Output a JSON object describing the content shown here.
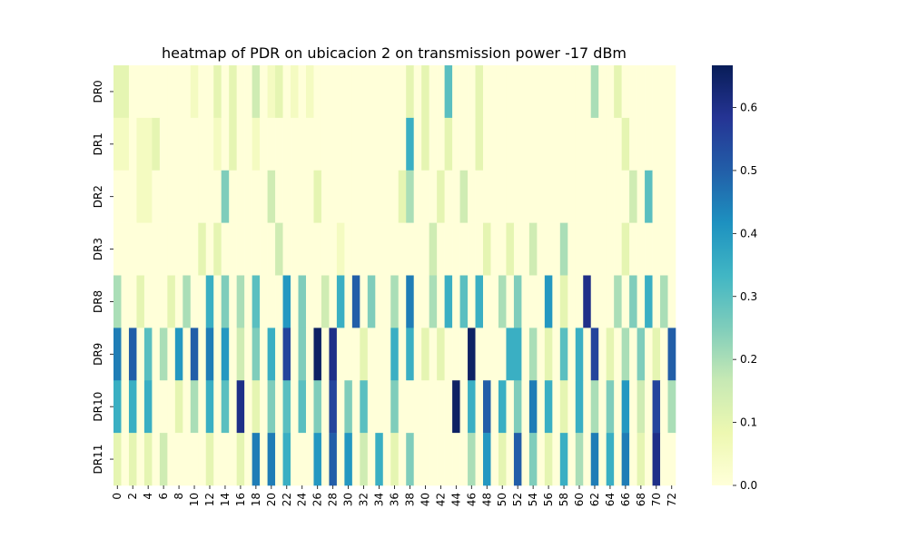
{
  "chart_data": {
    "type": "heatmap",
    "title": "heatmap of PDR on ubicacion 2 on transmission power -17 dBm",
    "xlabel": "",
    "ylabel": "",
    "x_tick_labels": [
      "0",
      "2",
      "4",
      "6",
      "8",
      "10",
      "12",
      "14",
      "16",
      "18",
      "20",
      "22",
      "24",
      "26",
      "28",
      "30",
      "32",
      "34",
      "36",
      "38",
      "40",
      "42",
      "44",
      "46",
      "48",
      "50",
      "52",
      "54",
      "56",
      "58",
      "60",
      "62",
      "64",
      "66",
      "68",
      "70",
      "72"
    ],
    "rows": [
      "DR0",
      "DR1",
      "DR2",
      "DR3",
      "DR8",
      "DR9",
      "DR10",
      "DR11"
    ],
    "columns": 73,
    "colormap": "YlGnBu",
    "vmin": 0,
    "vmax": 0.667,
    "colorbar_ticks": [
      "0.0",
      "0.1",
      "0.2",
      "0.3",
      "0.4",
      "0.5",
      "0.6"
    ],
    "colorbar_tick_values": [
      0.0,
      0.1,
      0.2,
      0.3,
      0.4,
      0.5,
      0.6
    ],
    "values": [
      [
        0.1,
        0.1,
        0,
        0,
        0,
        0,
        0,
        0,
        0,
        0,
        0.05,
        0,
        0,
        0.1,
        0,
        0.1,
        0,
        0,
        0.15,
        0,
        0.05,
        0.1,
        0,
        0.05,
        0,
        0.05,
        0,
        0,
        0,
        0,
        0,
        0,
        0,
        0,
        0,
        0,
        0,
        0,
        0.1,
        0,
        0.1,
        0,
        0,
        0.3,
        0,
        0,
        0,
        0.1,
        0,
        0,
        0,
        0,
        0,
        0,
        0,
        0,
        0,
        0,
        0,
        0,
        0,
        0,
        0.2,
        0,
        0,
        0.1,
        0,
        0,
        0,
        0,
        0,
        0,
        0
      ],
      [
        0.05,
        0.05,
        0,
        0.05,
        0.05,
        0.1,
        0,
        0,
        0,
        0,
        0,
        0,
        0,
        0.05,
        0,
        0.1,
        0,
        0,
        0.05,
        0,
        0,
        0,
        0,
        0,
        0,
        0,
        0,
        0,
        0,
        0,
        0,
        0,
        0,
        0,
        0,
        0,
        0,
        0,
        0.35,
        0,
        0.1,
        0,
        0,
        0.1,
        0,
        0,
        0,
        0.1,
        0,
        0,
        0,
        0,
        0,
        0,
        0,
        0,
        0,
        0,
        0,
        0,
        0,
        0,
        0,
        0,
        0,
        0,
        0.1,
        0,
        0,
        0,
        0,
        0,
        0
      ],
      [
        0,
        0,
        0,
        0.05,
        0.05,
        0,
        0,
        0,
        0,
        0,
        0,
        0,
        0,
        0,
        0.25,
        0,
        0,
        0,
        0,
        0,
        0.15,
        0,
        0,
        0,
        0,
        0,
        0.1,
        0,
        0,
        0,
        0,
        0,
        0,
        0,
        0,
        0,
        0,
        0.1,
        0.2,
        0,
        0,
        0,
        0.1,
        0,
        0,
        0.15,
        0,
        0,
        0,
        0,
        0,
        0,
        0,
        0,
        0,
        0,
        0,
        0,
        0,
        0,
        0,
        0,
        0,
        0,
        0,
        0,
        0,
        0.15,
        0,
        0.3,
        0,
        0,
        0
      ],
      [
        0,
        0,
        0,
        0,
        0,
        0,
        0,
        0,
        0,
        0,
        0,
        0.1,
        0,
        0.1,
        0,
        0,
        0,
        0,
        0,
        0,
        0,
        0.15,
        0,
        0,
        0,
        0,
        0,
        0,
        0,
        0.05,
        0,
        0,
        0,
        0,
        0,
        0,
        0,
        0,
        0,
        0,
        0,
        0.15,
        0,
        0,
        0,
        0,
        0,
        0,
        0.1,
        0,
        0,
        0.1,
        0,
        0,
        0.15,
        0,
        0,
        0,
        0.2,
        0,
        0,
        0,
        0,
        0,
        0,
        0,
        0.1,
        0,
        0,
        0,
        0,
        0,
        0
      ],
      [
        0.2,
        0,
        0,
        0.1,
        0,
        0,
        0,
        0.1,
        0,
        0.2,
        0,
        0,
        0.35,
        0,
        0.25,
        0,
        0.2,
        0,
        0.3,
        0,
        0,
        0,
        0.4,
        0,
        0.25,
        0,
        0,
        0.15,
        0,
        0.35,
        0,
        0.5,
        0,
        0.25,
        0,
        0,
        0.2,
        0,
        0.45,
        0,
        0,
        0.2,
        0,
        0.35,
        0,
        0.3,
        0,
        0.35,
        0,
        0,
        0.2,
        0,
        0.25,
        0,
        0,
        0,
        0.4,
        0,
        0.1,
        0,
        0,
        0.6,
        0,
        0,
        0,
        0.2,
        0,
        0.25,
        0,
        0.35,
        0,
        0.2,
        0
      ],
      [
        0.45,
        0,
        0.5,
        0,
        0.3,
        0,
        0.2,
        0,
        0.4,
        0,
        0.5,
        0,
        0.45,
        0,
        0.4,
        0,
        0.15,
        0,
        0.25,
        0,
        0.35,
        0,
        0.55,
        0,
        0.25,
        0,
        0.65,
        0,
        0.6,
        0,
        0,
        0,
        0.1,
        0,
        0,
        0,
        0.35,
        0,
        0.35,
        0,
        0.1,
        0,
        0.1,
        0,
        0,
        0,
        0.65,
        0,
        0,
        0,
        0,
        0.35,
        0.35,
        0,
        0.2,
        0,
        0.1,
        0,
        0.3,
        0,
        0.35,
        0,
        0.55,
        0,
        0.1,
        0,
        0.2,
        0,
        0.25,
        0,
        0.1,
        0,
        0.5
      ],
      [
        0.35,
        0,
        0.35,
        0,
        0.35,
        0,
        0,
        0,
        0.1,
        0,
        0.2,
        0,
        0.35,
        0,
        0.3,
        0,
        0.6,
        0,
        0.1,
        0,
        0.25,
        0,
        0.3,
        0,
        0.3,
        0,
        0.25,
        0,
        0.55,
        0,
        0.25,
        0,
        0.3,
        0,
        0,
        0,
        0.25,
        0,
        0,
        0,
        0,
        0,
        0,
        0,
        0.65,
        0,
        0.35,
        0,
        0.5,
        0,
        0.35,
        0,
        0.25,
        0,
        0.45,
        0,
        0.35,
        0,
        0.1,
        0,
        0.35,
        0,
        0.2,
        0,
        0.25,
        0,
        0.4,
        0,
        0.15,
        0,
        0.55,
        0,
        0.2
      ],
      [
        0.1,
        0,
        0.1,
        0,
        0.1,
        0,
        0.15,
        0,
        0,
        0,
        0,
        0,
        0.1,
        0,
        0,
        0,
        0.1,
        0,
        0.45,
        0,
        0.45,
        0,
        0.35,
        0,
        0,
        0,
        0.4,
        0,
        0.5,
        0,
        0.4,
        0,
        0.15,
        0,
        0.35,
        0,
        0.1,
        0,
        0.25,
        0,
        0,
        0,
        0,
        0,
        0,
        0,
        0.2,
        0,
        0.4,
        0,
        0.1,
        0,
        0.5,
        0,
        0.25,
        0,
        0.1,
        0,
        0.35,
        0,
        0.2,
        0,
        0.45,
        0,
        0.35,
        0,
        0.45,
        0,
        0.1,
        0,
        0.6,
        0,
        0
      ]
    ]
  }
}
